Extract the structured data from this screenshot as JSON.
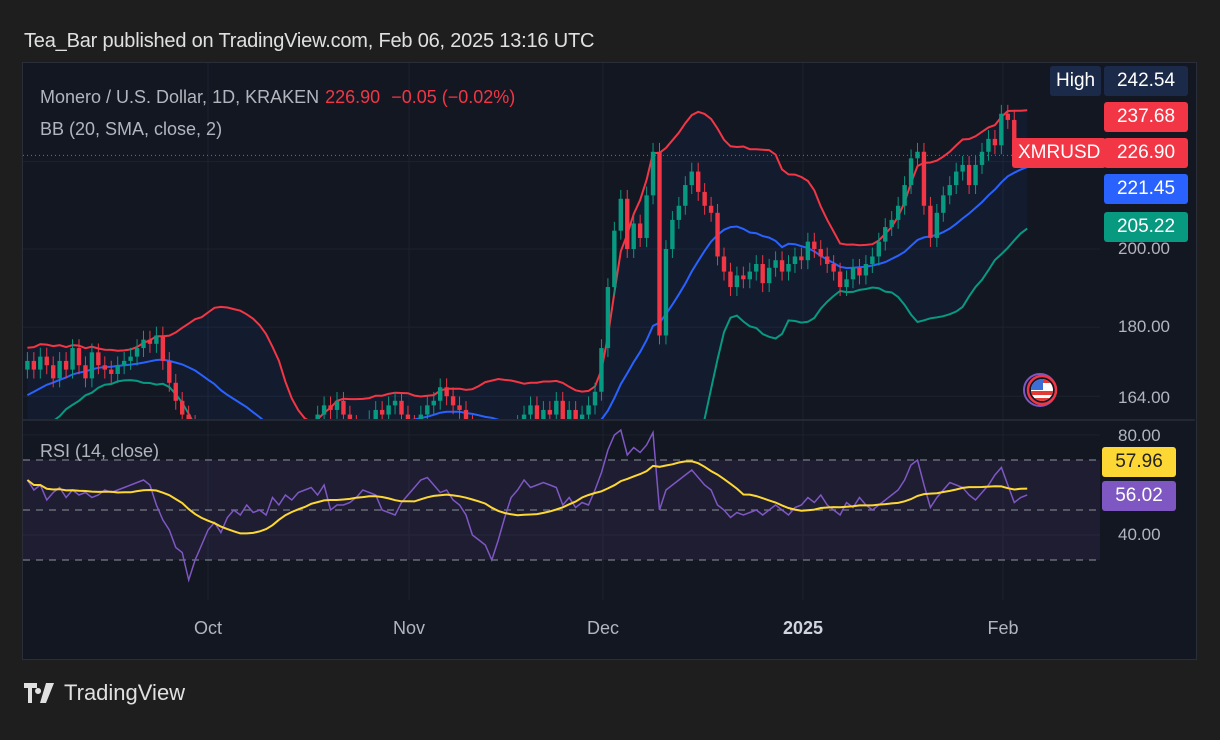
{
  "header": {
    "publish_line": "Tea_Bar published on TradingView.com, Feb 06, 2025 13:16 UTC"
  },
  "legend": {
    "symbol": "Monero / U.S. Dollar, 1D, KRAKEN",
    "last_price": "226.90",
    "change": "−0.05 (−0.02%)",
    "bb_label": "BB (20, SMA, close, 2)",
    "rsi_label": "RSI (14, close)"
  },
  "price_axis": {
    "ticks": [
      "200.00",
      "180.00",
      "164.00"
    ],
    "high_label": "High",
    "high_value": "242.54",
    "bb_upper_value": "237.68",
    "symbol_tag": "XMRUSD",
    "last_value": "226.90",
    "bb_basis_value": "221.45",
    "bb_lower_value": "205.22"
  },
  "rsi_axis": {
    "ticks": [
      "80.00",
      "40.00"
    ],
    "rsi_sma_value": "57.96",
    "rsi_value": "56.02"
  },
  "time_axis": {
    "labels": [
      "Oct",
      "Nov",
      "Dec",
      "2025",
      "Feb"
    ]
  },
  "footer": {
    "brand": "TradingView"
  },
  "colors": {
    "up": "#089981",
    "down": "#f23645",
    "bb_upper": "#f23645",
    "bb_basis": "#2962ff",
    "bb_lower": "#089981",
    "rsi": "#7e57c2",
    "rsi_sma": "#fdd835",
    "high_tag": "#1c2a4a"
  },
  "chart_data": {
    "type": "candlestick",
    "title": "Monero / U.S. Dollar, 1D, KRAKEN",
    "scale": "log",
    "ylim": [
      159,
      256
    ],
    "x_start": "2024-09-03",
    "x_end": "2025-02-05",
    "x_tick_labels": [
      "Oct",
      "Nov",
      "Dec",
      "2025",
      "Feb"
    ],
    "lead_in_closes": [
      155,
      157,
      156,
      158,
      160,
      159,
      161,
      163,
      162,
      165,
      164,
      166,
      168,
      167,
      169,
      170,
      171,
      172,
      170
    ],
    "closes": [
      172,
      170,
      173,
      171,
      168,
      172,
      170,
      175,
      171,
      168,
      174,
      171,
      170,
      169,
      171,
      172,
      173,
      175,
      177,
      176,
      178,
      172,
      167,
      163,
      160,
      158,
      156,
      154,
      150,
      148,
      147,
      150,
      152,
      151,
      153,
      150,
      152,
      151,
      153,
      155,
      152,
      154,
      156,
      155,
      157,
      160,
      162,
      161,
      163,
      160,
      158,
      157,
      156,
      159,
      161,
      160,
      162,
      163,
      160,
      158,
      157,
      160,
      162,
      163,
      166,
      164,
      162,
      161,
      158,
      156,
      152,
      150,
      152,
      151,
      155,
      157,
      158,
      160,
      162,
      158,
      161,
      160,
      163,
      159,
      161,
      158,
      160,
      162,
      165,
      175,
      190,
      205,
      214,
      200,
      207,
      203,
      215,
      228,
      178,
      200,
      208,
      212,
      218,
      222,
      216,
      212,
      210,
      198,
      194,
      190,
      193,
      192,
      194,
      196,
      191,
      195,
      197,
      194,
      196,
      198,
      197,
      202,
      200,
      198,
      196,
      194,
      190,
      192,
      195,
      193,
      196,
      198,
      202,
      206,
      208,
      212,
      218,
      226,
      228,
      212,
      203,
      210,
      215,
      218,
      222,
      224,
      218,
      224,
      228,
      232,
      230,
      240,
      238,
      227,
      226.95,
      226.9
    ],
    "bollinger": {
      "length": 20,
      "type": "SMA",
      "source": "close",
      "mult": 2
    },
    "rsi": {
      "length": 14,
      "ylim": [
        14,
        86
      ],
      "levels": [
        70,
        50,
        30
      ],
      "sma_length": 14,
      "values": [
        62,
        58,
        60,
        54,
        57,
        59,
        55,
        58,
        56,
        57,
        55,
        56,
        58,
        57,
        58,
        59,
        60,
        61,
        62,
        60,
        52,
        46,
        42,
        35,
        33,
        22,
        30,
        36,
        42,
        45,
        41,
        47,
        50,
        48,
        52,
        49,
        50,
        48,
        55,
        52,
        56,
        54,
        57,
        58,
        59,
        56,
        60,
        50,
        52,
        52,
        53,
        55,
        58,
        57,
        56,
        50,
        49,
        48,
        53,
        56,
        59,
        62,
        63,
        60,
        57,
        58,
        54,
        52,
        48,
        40,
        38,
        36,
        30,
        38,
        47,
        55,
        58,
        62,
        59,
        60,
        61,
        60,
        59,
        52,
        55,
        51,
        53,
        52,
        58,
        65,
        74,
        80,
        82,
        72,
        75,
        73,
        76,
        81,
        50,
        58,
        60,
        62,
        64,
        66,
        63,
        60,
        58,
        52,
        50,
        47,
        49,
        48,
        49,
        50,
        48,
        50,
        52,
        50,
        48,
        51,
        52,
        55,
        53,
        56,
        52,
        50,
        48,
        53,
        51,
        55,
        52,
        50,
        52,
        54,
        56,
        58,
        62,
        68,
        70,
        60,
        51,
        55,
        58,
        61,
        60,
        59,
        56,
        54,
        57,
        60,
        64,
        67,
        60,
        53,
        55,
        56.02
      ]
    }
  }
}
